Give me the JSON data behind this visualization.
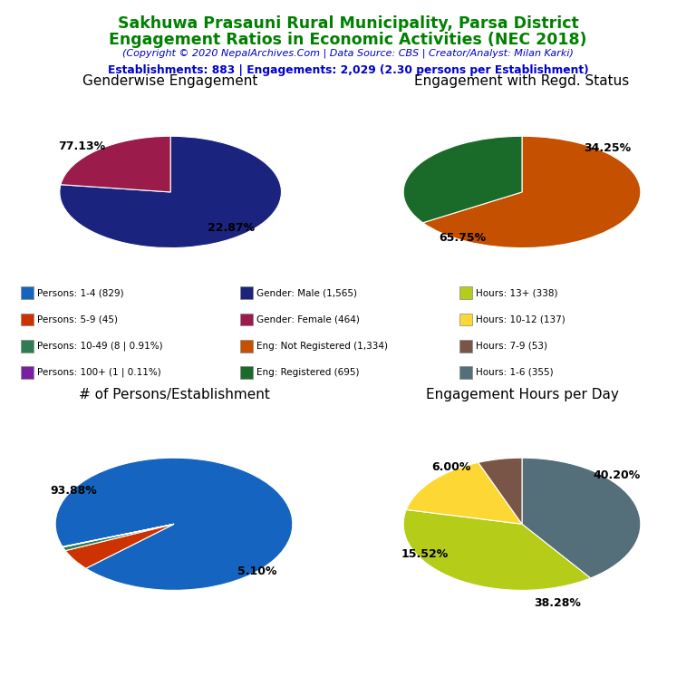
{
  "title_line1": "Sakhuwa Prasauni Rural Municipality, Parsa District",
  "title_line2": "Engagement Ratios in Economic Activities (NEC 2018)",
  "subtitle": "(Copyright © 2020 NepalArchives.Com | Data Source: CBS | Creator/Analyst: Milan Karki)",
  "stats_line": "Establishments: 883 | Engagements: 2,029 (2.30 persons per Establishment)",
  "title_color": "#008000",
  "subtitle_color": "#0000cc",
  "stats_color": "#0000cc",
  "pie1_title": "Genderwise Engagement",
  "pie1_values": [
    77.13,
    22.87
  ],
  "pie1_colors": [
    "#1a237e",
    "#9b1b4a"
  ],
  "pie1_labels": [
    "77.13%",
    "22.87%"
  ],
  "pie2_title": "Engagement with Regd. Status",
  "pie2_values": [
    65.75,
    34.25
  ],
  "pie2_colors": [
    "#c45000",
    "#1a6b2a"
  ],
  "pie2_labels": [
    "65.75%",
    "34.25%"
  ],
  "pie3_title": "# of Persons/Establishment",
  "pie3_values": [
    93.88,
    5.1,
    0.91,
    0.11
  ],
  "pie3_colors": [
    "#1565c0",
    "#cc3300",
    "#2e7d52",
    "#7b1fa2"
  ],
  "pie3_labels": [
    "93.88%",
    "5.10%",
    "",
    ""
  ],
  "pie4_title": "Engagement Hours per Day",
  "pie4_values": [
    40.2,
    38.28,
    15.52,
    6.0
  ],
  "pie4_colors": [
    "#546e7a",
    "#b5cc18",
    "#fdd835",
    "#795548"
  ],
  "pie4_labels": [
    "40.20%",
    "38.28%",
    "15.52%",
    "6.00%"
  ],
  "legend_items": [
    {
      "label": "Persons: 1-4 (829)",
      "color": "#1565c0"
    },
    {
      "label": "Persons: 5-9 (45)",
      "color": "#cc3300"
    },
    {
      "label": "Persons: 10-49 (8 | 0.91%)",
      "color": "#2e7d52"
    },
    {
      "label": "Persons: 100+ (1 | 0.11%)",
      "color": "#7b1fa2"
    },
    {
      "label": "Gender: Male (1,565)",
      "color": "#1a237e"
    },
    {
      "label": "Gender: Female (464)",
      "color": "#9b1b4a"
    },
    {
      "label": "Eng: Not Registered (1,334)",
      "color": "#c45000"
    },
    {
      "label": "Eng: Registered (695)",
      "color": "#1a6b2a"
    },
    {
      "label": "Hours: 13+ (338)",
      "color": "#b5cc18"
    },
    {
      "label": "Hours: 10-12 (137)",
      "color": "#fdd835"
    },
    {
      "label": "Hours: 7-9 (53)",
      "color": "#795548"
    },
    {
      "label": "Hours: 1-6 (355)",
      "color": "#546e7a"
    }
  ]
}
